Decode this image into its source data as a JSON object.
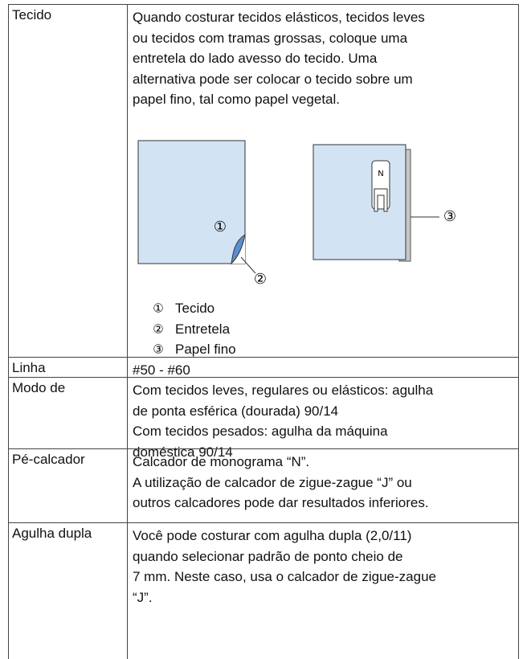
{
  "table": {
    "rows": [
      {
        "label": "Tecido",
        "lines": [
          "Quando costurar tecidos elásticos, tecidos leves",
          "ou tecidos com tramas grossas, coloque uma",
          "entretela do lado avesso do tecido. Uma",
          "alternativa pode ser colocar o tecido sobre um",
          "papel fino, tal como papel vegetal."
        ],
        "figure": {
          "markers": [
            "①",
            "②",
            "③"
          ],
          "foot_letter": "N",
          "legend": [
            "Tecido",
            "Entretela",
            "Papel fino"
          ]
        }
      },
      {
        "label": "Linha",
        "lines": [
          "#50 - #60"
        ]
      },
      {
        "label": "Modo de",
        "lines": [
          "Com tecidos leves, regulares ou elásticos: agulha",
          "de ponta esférica (dourada) 90/14",
          "Com tecidos pesados: agulha da máquina",
          "doméstica 90/14"
        ]
      },
      {
        "label": "Pé-calcador",
        "lines": [
          "Calcador de monograma “N”.",
          "A utilização de calcador de zigue-zague “J” ou",
          "outros calcadores pode dar resultados inferiores."
        ]
      },
      {
        "label": "Agulha dupla",
        "lines": [
          "Você pode costurar com agulha dupla (2,0/11)",
          "quando selecionar padrão de ponto cheio de",
          "7 mm. Neste caso, usa o calcador de zigue-zague",
          "“J”."
        ]
      }
    ]
  }
}
